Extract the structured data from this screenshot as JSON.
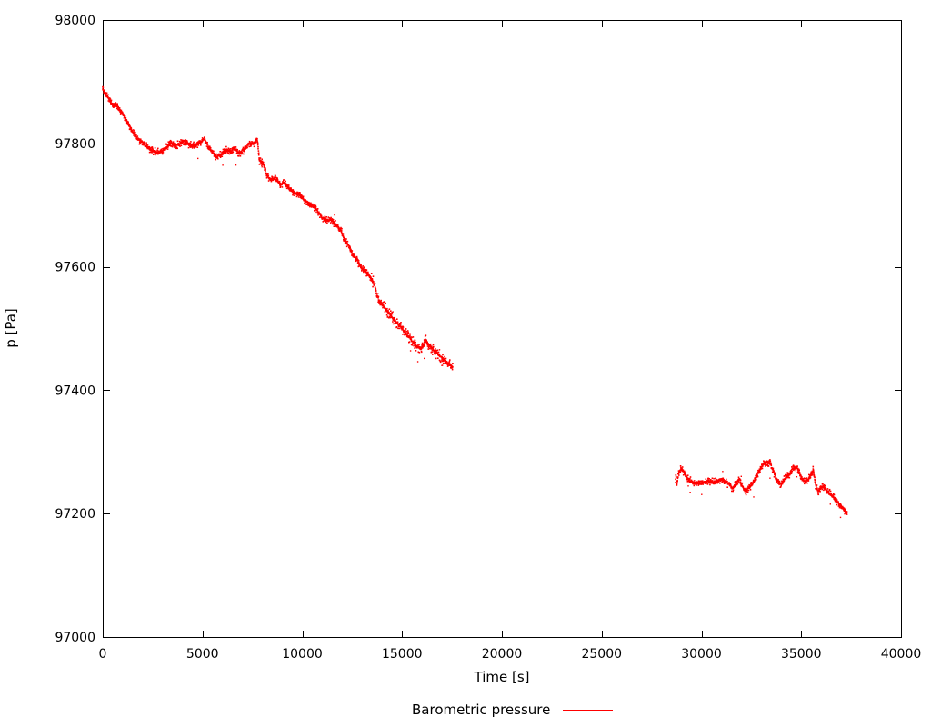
{
  "page": {
    "background": "#ffffff"
  },
  "chart_data": {
    "type": "scatter",
    "title": "",
    "xlabel": "Time [s]",
    "ylabel": "p [Pa]",
    "xlim": [
      0,
      40000
    ],
    "ylim": [
      97000,
      98000
    ],
    "x_ticks": [
      0,
      5000,
      10000,
      15000,
      20000,
      25000,
      30000,
      35000,
      40000
    ],
    "y_ticks": [
      97000,
      97200,
      97400,
      97600,
      97800,
      98000
    ],
    "grid": false,
    "border": "full-box-with-mirrored-inward-ticks",
    "axis_color": "#000000",
    "point_color": "#ff0000",
    "legend_position": "below-plot-center",
    "legend": [
      {
        "label": "Barometric pressure",
        "color": "#ff0000"
      }
    ],
    "series": [
      {
        "name": "Barometric pressure",
        "style": "dense-noisy-dots",
        "segments": [
          [
            [
              0,
              97888
            ],
            [
              150,
              97880
            ],
            [
              350,
              97870
            ],
            [
              550,
              97860
            ],
            [
              700,
              97862
            ],
            [
              900,
              97852
            ],
            [
              1100,
              97843
            ],
            [
              1400,
              97824
            ],
            [
              1700,
              97809
            ],
            [
              2000,
              97801
            ],
            [
              2300,
              97792
            ],
            [
              2700,
              97785
            ],
            [
              3000,
              97787
            ],
            [
              3400,
              97800
            ],
            [
              3700,
              97797
            ],
            [
              4100,
              97804
            ],
            [
              4400,
              97796
            ],
            [
              4700,
              97798
            ],
            [
              5100,
              97807
            ],
            [
              5300,
              97794
            ],
            [
              5700,
              97778
            ],
            [
              5900,
              97782
            ],
            [
              6200,
              97789
            ],
            [
              6400,
              97787
            ],
            [
              6600,
              97793
            ],
            [
              6800,
              97783
            ],
            [
              7100,
              97790
            ],
            [
              7300,
              97799
            ],
            [
              7600,
              97800
            ],
            [
              7750,
              97806
            ],
            [
              7850,
              97772
            ],
            [
              8050,
              97768
            ],
            [
              8200,
              97750
            ],
            [
              8400,
              97741
            ],
            [
              8650,
              97744
            ],
            [
              8900,
              97733
            ],
            [
              9100,
              97736
            ],
            [
              9340,
              97727
            ],
            [
              9600,
              97720
            ],
            [
              9900,
              97716
            ],
            [
              10100,
              97708
            ],
            [
              10350,
              97701
            ],
            [
              10550,
              97698
            ],
            [
              10800,
              97689
            ],
            [
              11000,
              97679
            ],
            [
              11250,
              97674
            ],
            [
              11450,
              97676
            ],
            [
              11700,
              97667
            ],
            [
              11950,
              97659
            ],
            [
              12100,
              97645
            ],
            [
              12250,
              97638
            ],
            [
              12400,
              97630
            ],
            [
              12550,
              97618
            ],
            [
              12700,
              97613
            ],
            [
              12850,
              97605
            ],
            [
              13000,
              97597
            ],
            [
              13200,
              97592
            ],
            [
              13350,
              97586
            ],
            [
              13500,
              97578
            ],
            [
              13650,
              97568
            ],
            [
              13750,
              97553
            ],
            [
              13900,
              97543
            ],
            [
              14100,
              97535
            ],
            [
              14300,
              97526
            ],
            [
              14500,
              97518
            ],
            [
              14700,
              97511
            ],
            [
              14900,
              97505
            ],
            [
              15100,
              97495
            ],
            [
              15300,
              97487
            ],
            [
              15450,
              97482
            ],
            [
              15700,
              97472
            ],
            [
              15900,
              97468
            ],
            [
              16050,
              97472
            ],
            [
              16170,
              97482
            ],
            [
              16300,
              97475
            ],
            [
              16450,
              97469
            ],
            [
              16600,
              97464
            ],
            [
              16800,
              97459
            ],
            [
              17000,
              97452
            ],
            [
              17200,
              97445
            ],
            [
              17400,
              97441
            ],
            [
              17540,
              97438
            ]
          ],
          [
            [
              28700,
              97252
            ],
            [
              28720,
              97265
            ],
            [
              28760,
              97246
            ],
            [
              28850,
              97266
            ],
            [
              29000,
              97274
            ],
            [
              29150,
              97266
            ],
            [
              29300,
              97257
            ],
            [
              29500,
              97252
            ],
            [
              29750,
              97249
            ],
            [
              30000,
              97250
            ],
            [
              30250,
              97252
            ],
            [
              30500,
              97251
            ],
            [
              30750,
              97252
            ],
            [
              31000,
              97256
            ],
            [
              31200,
              97251
            ],
            [
              31400,
              97247
            ],
            [
              31550,
              97241
            ],
            [
              31700,
              97246
            ],
            [
              31900,
              97257
            ],
            [
              32050,
              97245
            ],
            [
              32200,
              97235
            ],
            [
              32350,
              97242
            ],
            [
              32500,
              97246
            ],
            [
              32700,
              97257
            ],
            [
              32900,
              97270
            ],
            [
              33100,
              97280
            ],
            [
              33300,
              97284
            ],
            [
              33450,
              97281
            ],
            [
              33600,
              97270
            ],
            [
              33800,
              97253
            ],
            [
              34000,
              97247
            ],
            [
              34200,
              97258
            ],
            [
              34400,
              97263
            ],
            [
              34600,
              97275
            ],
            [
              34800,
              97274
            ],
            [
              35000,
              97258
            ],
            [
              35200,
              97252
            ],
            [
              35350,
              97255
            ],
            [
              35500,
              97263
            ],
            [
              35600,
              97272
            ],
            [
              35700,
              97250
            ],
            [
              35850,
              97236
            ],
            [
              35950,
              97242
            ],
            [
              36100,
              97244
            ],
            [
              36300,
              97237
            ],
            [
              36500,
              97230
            ],
            [
              36700,
              97223
            ],
            [
              36900,
              97216
            ],
            [
              37100,
              97209
            ],
            [
              37300,
              97200
            ]
          ]
        ]
      }
    ],
    "render_hints": {
      "jitter_core_pa": 2.5,
      "jitter_fuzz_pa": 7,
      "outlier_rate": 0.012,
      "tail_outlier_rate": 0.05,
      "tail_from_t": 15600,
      "wide_from_t": 13400,
      "wide_factor": 1.5
    }
  }
}
